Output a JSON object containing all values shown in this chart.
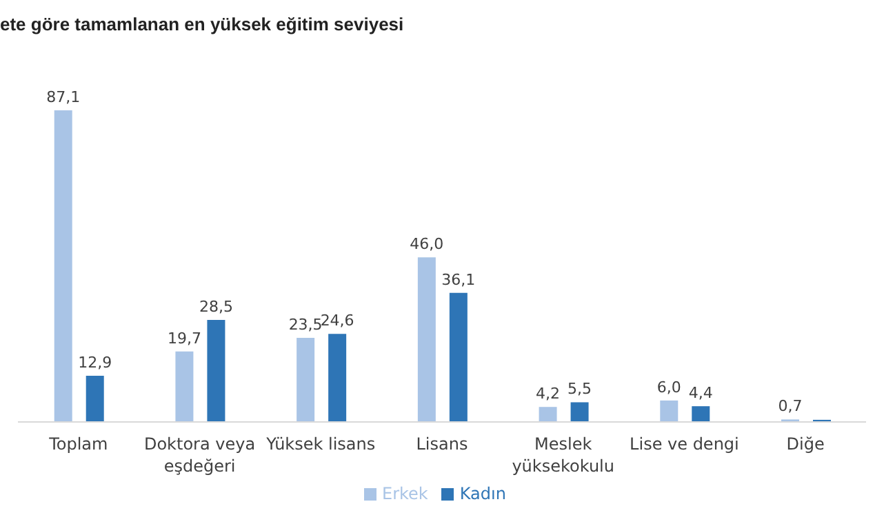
{
  "chart_data": {
    "type": "bar",
    "title": "ete göre tamamlanan en yüksek eğitim seviyesi",
    "categories": [
      "Toplam",
      "Doktora veya eşdeğeri",
      "Yüksek lisans",
      "Lisans",
      "Meslek yüksekokulu",
      "Lise ve dengi",
      "Diğe"
    ],
    "series": [
      {
        "name": "Erkek",
        "color": "#a9c4e6",
        "values": [
          87.1,
          19.7,
          23.5,
          46.0,
          4.2,
          6.0,
          0.7
        ],
        "value_labels": [
          "87,1",
          "19,7",
          "23,5",
          "46,0",
          "4,2",
          "6,0",
          "0,7"
        ]
      },
      {
        "name": "Kadın",
        "color": "#2e75b6",
        "values": [
          12.9,
          28.5,
          24.6,
          36.1,
          5.5,
          4.4,
          0.6
        ],
        "value_labels": [
          "12,9",
          "28,5",
          "24,6",
          "36,1",
          "5,5",
          "4,4",
          null
        ]
      }
    ],
    "legend": "bottom"
  }
}
